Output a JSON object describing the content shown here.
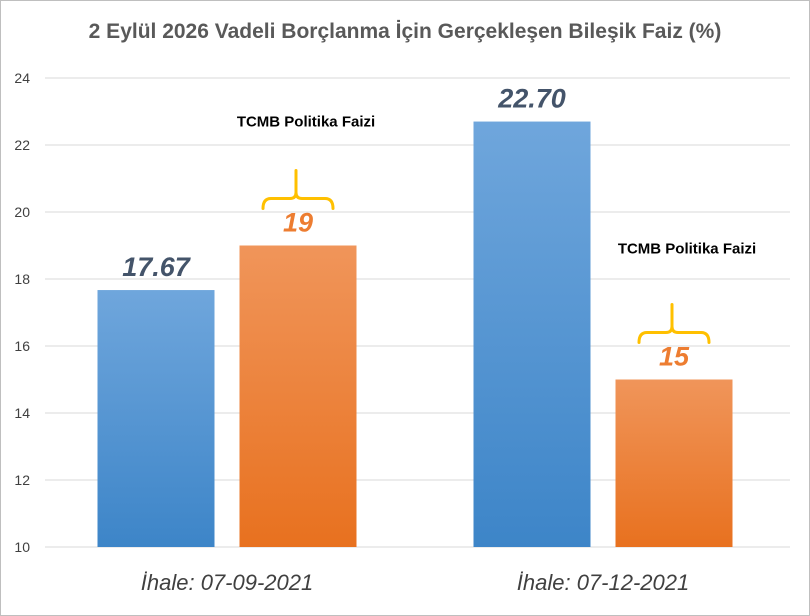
{
  "chart_data": {
    "type": "bar",
    "title": "2 Eylül 2026 Vadeli Borçlanma İçin Gerçekleşen Bileşik Faiz (%)",
    "categories": [
      "İhale: 07-09-2021",
      "İhale: 07-12-2021"
    ],
    "series": [
      {
        "values": [
          17.67,
          22.7
        ],
        "value_labels": [
          "17.67",
          "22.70"
        ],
        "color": "#5b9bd5"
      },
      {
        "values": [
          19,
          15
        ],
        "value_labels": [
          "19",
          "15"
        ],
        "color": "#ed7d31"
      }
    ],
    "ylim": [
      10,
      24
    ],
    "yticks": [
      "10",
      "12",
      "14",
      "16",
      "18",
      "20",
      "22",
      "24"
    ],
    "grid": true,
    "annotations": [
      {
        "text": "TCMB Politika Faizi",
        "category_index": 0,
        "series_index": 1
      },
      {
        "text": "TCMB Politika Faizi",
        "category_index": 1,
        "series_index": 1
      }
    ],
    "annotation_color": "#ffc000"
  }
}
